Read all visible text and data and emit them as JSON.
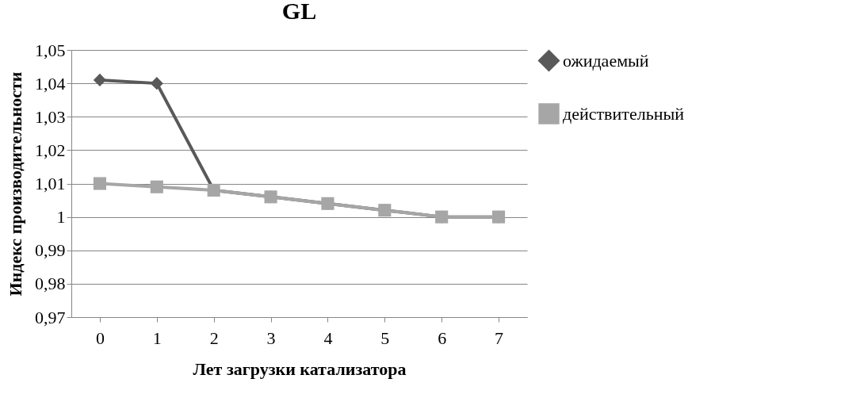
{
  "chart_data": {
    "type": "line",
    "title": "GL",
    "xlabel": "Лет загрузки катализатора",
    "ylabel": "Индекс производительности",
    "categories": [
      "0",
      "1",
      "2",
      "3",
      "4",
      "5",
      "6",
      "7"
    ],
    "series": [
      {
        "name": "ожидаемый",
        "color": "#595959",
        "marker": "diamond",
        "values": [
          1.041,
          1.04,
          1.008,
          1.006,
          1.004,
          1.002,
          1.0,
          1.0
        ]
      },
      {
        "name": "действительный",
        "color": "#a6a6a6",
        "marker": "square",
        "values": [
          1.01,
          1.009,
          1.008,
          1.006,
          1.004,
          1.002,
          1.0,
          1.0
        ]
      }
    ],
    "ylim": [
      0.97,
      1.05
    ],
    "yticks": [
      {
        "value": 0.97,
        "label": "0,97"
      },
      {
        "value": 0.98,
        "label": "0,98"
      },
      {
        "value": 0.99,
        "label": "0,99"
      },
      1,
      {
        "value": 1.01,
        "label": "1,01"
      },
      {
        "value": 1.02,
        "label": "1,02"
      },
      {
        "value": 1.03,
        "label": "1,03"
      },
      {
        "value": 1.04,
        "label": "1,04"
      },
      {
        "value": 1.05,
        "label": "1,05"
      }
    ],
    "grid": "y",
    "legend": "right",
    "line_style": "solid"
  }
}
